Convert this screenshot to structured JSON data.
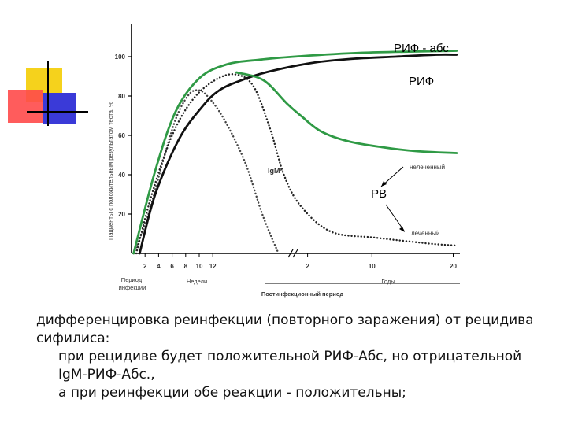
{
  "decor": {
    "colors": [
      "#f5d21c",
      "#ff4a4a",
      "#3a3ad8",
      "#000000"
    ]
  },
  "chart_data": {
    "type": "line",
    "ylabel": "Пациенты с положительным результатом теста, %",
    "y_ticks": [
      "100",
      "80",
      "60",
      "40",
      "20"
    ],
    "ylim": [
      0,
      105
    ],
    "x_ticks": [
      "2",
      "4",
      "6",
      "8",
      "10",
      "12",
      "2",
      "10",
      "20"
    ],
    "x_groups": [
      "Период инфекции",
      "Недели",
      "Постинфекционный период",
      "Годы"
    ],
    "annotations": {
      "igm": "IgM*",
      "untreated": "нелеченный",
      "treated": "леченный",
      "rif_abs": "РИФ - абс",
      "rif": "РИФ",
      "rv": "РВ"
    },
    "series": [
      {
        "name": "IgM*",
        "style": "dotted",
        "color": "#444444",
        "points": [
          [
            0.35,
            0
          ],
          [
            2.5,
            20
          ],
          [
            4.5,
            45
          ],
          [
            6.5,
            68
          ],
          [
            8.3,
            80
          ],
          [
            9.7,
            83
          ],
          [
            11.2,
            80
          ],
          [
            13.7,
            68
          ],
          [
            16.8,
            46
          ],
          [
            19.3,
            20
          ],
          [
            21.7,
            0
          ]
        ]
      },
      {
        "name": "",
        "style": "dotted",
        "color": "#222222",
        "points": [
          [
            0.7,
            0
          ],
          [
            3,
            30
          ],
          [
            6,
            60
          ],
          [
            9,
            78
          ],
          [
            12.3,
            88
          ],
          [
            15.3,
            91
          ],
          [
            18,
            85
          ],
          [
            20.5,
            63
          ],
          [
            22.5,
            40
          ],
          [
            25,
            24
          ],
          [
            29.5,
            11
          ],
          [
            36,
            8
          ],
          [
            44,
            5
          ],
          [
            48,
            4
          ]
        ]
      },
      {
        "name": "РИФ",
        "style": "solid",
        "color": "#111111",
        "points": [
          [
            1.2,
            0
          ],
          [
            3.5,
            30
          ],
          [
            7,
            58
          ],
          [
            10.3,
            74
          ],
          [
            13,
            83
          ],
          [
            17,
            89
          ],
          [
            21,
            93
          ],
          [
            27,
            97
          ],
          [
            33,
            99
          ],
          [
            39,
            100
          ],
          [
            45,
            101
          ],
          [
            48,
            101
          ]
        ]
      },
      {
        "name": "РИФ - абс",
        "style": "solid",
        "color": "#2f9a45",
        "points": [
          [
            0.3,
            0
          ],
          [
            3.5,
            42
          ],
          [
            6.5,
            72
          ],
          [
            10,
            89
          ],
          [
            14,
            96
          ],
          [
            19,
            98.5
          ],
          [
            24,
            100
          ],
          [
            34,
            102
          ],
          [
            48,
            103
          ]
        ]
      },
      {
        "name": "нелеченный",
        "style": "solid",
        "color": "#2f9a45",
        "points": [
          [
            15.5,
            92
          ],
          [
            19.5,
            88
          ],
          [
            23,
            76
          ],
          [
            25,
            70
          ],
          [
            28,
            62
          ],
          [
            32,
            57
          ],
          [
            37,
            54
          ],
          [
            42,
            52
          ],
          [
            48,
            51
          ]
        ]
      }
    ]
  },
  "caption": {
    "line1": "дифференцировка реинфекции (повторного заражения) от рецидива сифилиса:",
    "line2": "при рецидиве будет положительной РИФ-Абс, но отрицательной IgM-РИФ-Абс.,",
    "line3": "а при реинфекции обе реакции - положительны;"
  }
}
